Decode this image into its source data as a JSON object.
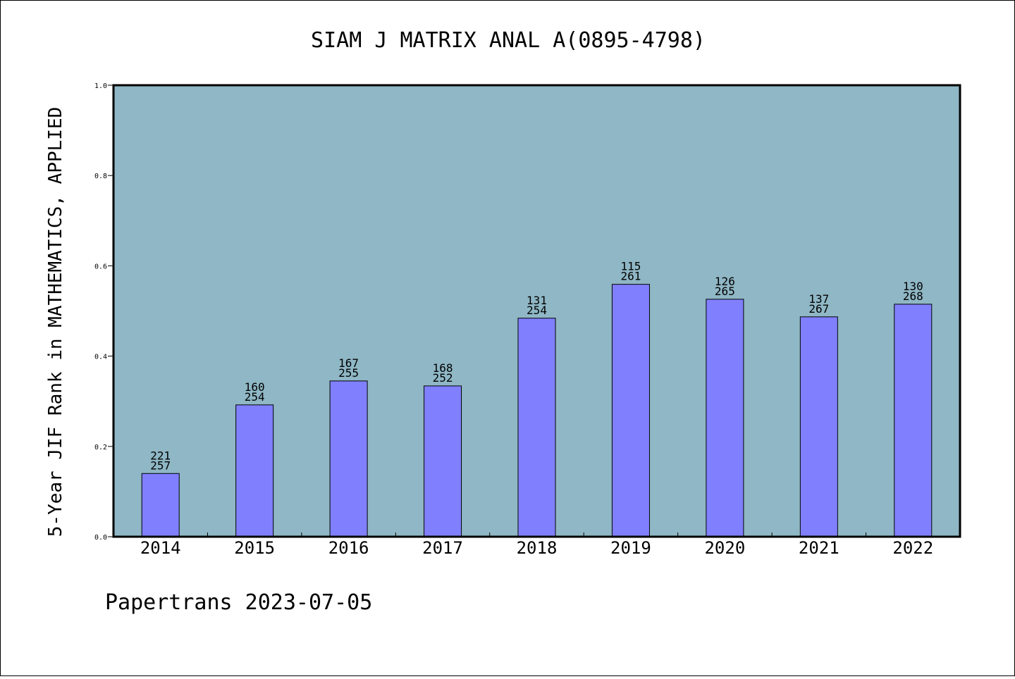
{
  "chart_data": {
    "type": "bar",
    "title": "SIAM J MATRIX ANAL A(0895-4798)",
    "ylabel": "5-Year JIF Rank in MATHEMATICS, APPLIED",
    "xlabel": "",
    "categories": [
      "2014",
      "2015",
      "2016",
      "2017",
      "2018",
      "2019",
      "2020",
      "2021",
      "2022"
    ],
    "values": [
      0.14,
      0.292,
      0.345,
      0.334,
      0.484,
      0.559,
      0.526,
      0.487,
      0.515
    ],
    "rank": [
      "221",
      "160",
      "167",
      "168",
      "131",
      "115",
      "126",
      "137",
      "130"
    ],
    "total": [
      "257",
      "254",
      "255",
      "252",
      "254",
      "261",
      "265",
      "267",
      "268"
    ],
    "ylim": [
      0,
      1.0
    ],
    "yticks": [
      "0.0",
      "0.2",
      "0.4",
      "0.6",
      "0.8",
      "1.0"
    ],
    "grid": false,
    "colors": {
      "plot_background": "#8fb7c5",
      "bar": "#8080ff"
    }
  },
  "footer": {
    "text": "Papertrans 2023-07-05"
  }
}
